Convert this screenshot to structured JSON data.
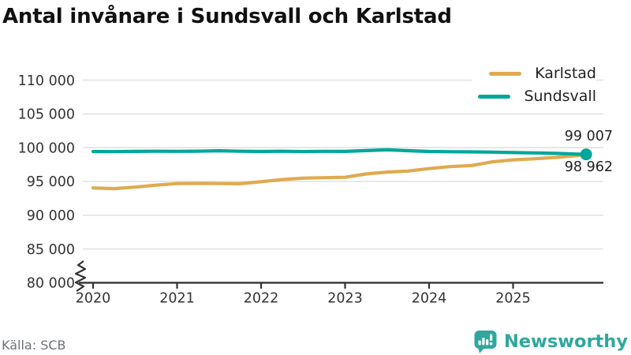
{
  "title": "Antal invånare i Sundsvall och Karlstad",
  "source": "Källa: SCB",
  "brand": {
    "name": "Newsworthy",
    "color": "#2FA79E"
  },
  "colors": {
    "karlstad": "#DFAA50",
    "sundsvall": "#00A79A",
    "grid": "#e1e1e1",
    "axis": "#333333",
    "tick_text": "#333333"
  },
  "legend": [
    {
      "label": "Karlstad",
      "color": "#DFAA50"
    },
    {
      "label": "Sundsvall",
      "color": "#00A79A"
    }
  ],
  "end_labels": {
    "sundsvall": "99 007",
    "karlstad": "98 962"
  },
  "chart_data": {
    "type": "line",
    "title": "Antal invånare i Sundsvall och Karlstad",
    "xlabel": "",
    "ylabel": "",
    "ylim": [
      80000,
      110000
    ],
    "axis_break_at_bottom": true,
    "grid": true,
    "legend_position": "top-right",
    "x_ticks": [
      {
        "value": 2020,
        "label": "2020"
      },
      {
        "value": 2021,
        "label": "2021"
      },
      {
        "value": 2022,
        "label": "2022"
      },
      {
        "value": 2023,
        "label": "2023"
      },
      {
        "value": 2024,
        "label": "2024"
      },
      {
        "value": 2025,
        "label": "2025"
      }
    ],
    "y_ticks": [
      {
        "value": 110000,
        "label": "110 000"
      },
      {
        "value": 105000,
        "label": "105 000"
      },
      {
        "value": 100000,
        "label": "100 000"
      },
      {
        "value": 95000,
        "label": "95 000"
      },
      {
        "value": 90000,
        "label": "90 000"
      },
      {
        "value": 85000,
        "label": "85 000"
      },
      {
        "value": 80000,
        "label": "80 000"
      }
    ],
    "series": [
      {
        "name": "Karlstad",
        "color": "#DFAA50",
        "end_label": "98 962",
        "end_value": 98962,
        "end_dot": false,
        "points": [
          [
            2020.0,
            94040
          ],
          [
            2020.25,
            93940
          ],
          [
            2020.5,
            94160
          ],
          [
            2020.75,
            94450
          ],
          [
            2021.0,
            94690
          ],
          [
            2021.25,
            94710
          ],
          [
            2021.5,
            94690
          ],
          [
            2021.75,
            94660
          ],
          [
            2022.0,
            94960
          ],
          [
            2022.25,
            95280
          ],
          [
            2022.5,
            95490
          ],
          [
            2022.75,
            95560
          ],
          [
            2023.0,
            95620
          ],
          [
            2023.25,
            96110
          ],
          [
            2023.5,
            96390
          ],
          [
            2023.75,
            96540
          ],
          [
            2024.0,
            96900
          ],
          [
            2024.25,
            97200
          ],
          [
            2024.5,
            97350
          ],
          [
            2024.75,
            97900
          ],
          [
            2025.0,
            98200
          ],
          [
            2025.25,
            98350
          ],
          [
            2025.5,
            98550
          ],
          [
            2025.87,
            98962
          ]
        ]
      },
      {
        "name": "Sundsvall",
        "color": "#00A79A",
        "end_label": "99 007",
        "end_value": 99007,
        "end_dot": true,
        "points": [
          [
            2020.0,
            99430
          ],
          [
            2020.25,
            99420
          ],
          [
            2020.5,
            99450
          ],
          [
            2020.75,
            99470
          ],
          [
            2021.0,
            99460
          ],
          [
            2021.25,
            99490
          ],
          [
            2021.5,
            99540
          ],
          [
            2021.75,
            99480
          ],
          [
            2022.0,
            99440
          ],
          [
            2022.25,
            99470
          ],
          [
            2022.5,
            99430
          ],
          [
            2022.75,
            99460
          ],
          [
            2023.0,
            99450
          ],
          [
            2023.25,
            99570
          ],
          [
            2023.5,
            99690
          ],
          [
            2023.75,
            99560
          ],
          [
            2024.0,
            99440
          ],
          [
            2024.25,
            99410
          ],
          [
            2024.5,
            99380
          ],
          [
            2024.75,
            99350
          ],
          [
            2025.0,
            99280
          ],
          [
            2025.25,
            99230
          ],
          [
            2025.5,
            99160
          ],
          [
            2025.87,
            99007
          ]
        ]
      }
    ]
  }
}
